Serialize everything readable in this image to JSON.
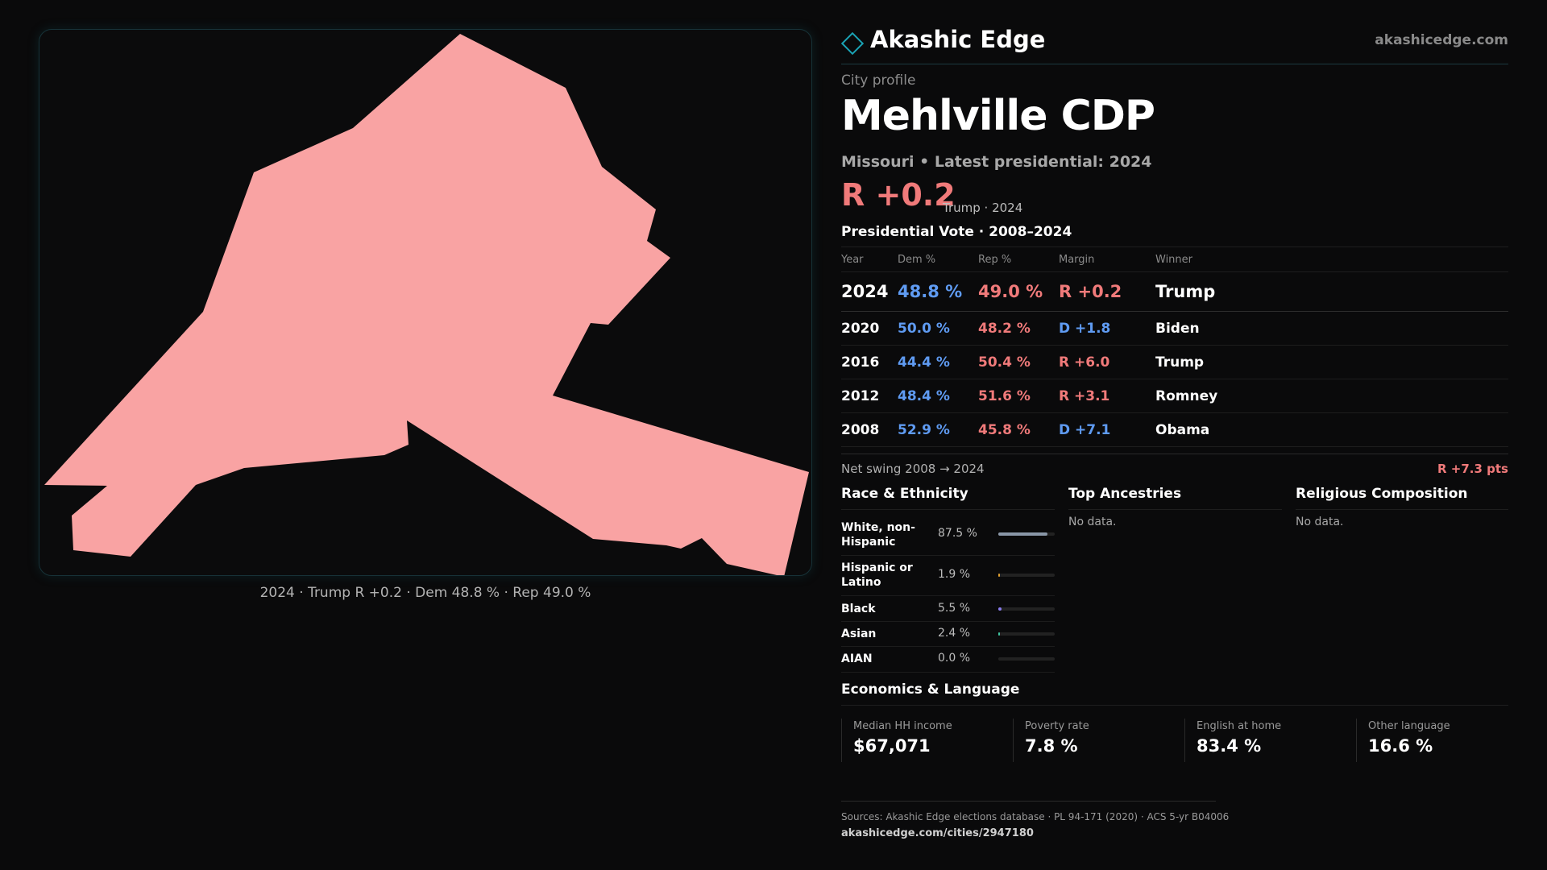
{
  "brand": {
    "name": "Akashic Edge",
    "url": "akashicedge.com"
  },
  "map": {
    "caption": "2024 · Trump R +0.2 · Dem 48.8 % · Rep 49.0 %",
    "fill_color": "#f9a3a3"
  },
  "profile": {
    "kicker": "City profile",
    "title": "Mehlville CDP",
    "subtitle": "Missouri • Latest presidential: 2024",
    "headline_margin": "R +0.2",
    "headline_winner": "Trump · 2024"
  },
  "vote": {
    "title": "Presidential Vote · 2008–2024",
    "headers": {
      "year": "Year",
      "dem": "Dem %",
      "rep": "Rep %",
      "margin": "Margin",
      "winner": "Winner"
    },
    "rows": [
      {
        "year": "2024",
        "dem": "48.8 %",
        "rep": "49.0 %",
        "margin": "R +0.2",
        "party": "R",
        "winner": "Trump"
      },
      {
        "year": "2020",
        "dem": "50.0 %",
        "rep": "48.2 %",
        "margin": "D +1.8",
        "party": "D",
        "winner": "Biden"
      },
      {
        "year": "2016",
        "dem": "44.4 %",
        "rep": "50.4 %",
        "margin": "R +6.0",
        "party": "R",
        "winner": "Trump"
      },
      {
        "year": "2012",
        "dem": "48.4 %",
        "rep": "51.6 %",
        "margin": "R +3.1",
        "party": "R",
        "winner": "Romney"
      },
      {
        "year": "2008",
        "dem": "52.9 %",
        "rep": "45.8 %",
        "margin": "D +7.1",
        "party": "D",
        "winner": "Obama"
      }
    ],
    "swing_label": "Net swing 2008 → 2024",
    "swing_value": "R +7.3 pts"
  },
  "race": {
    "title": "Race & Ethnicity",
    "rows": [
      {
        "label": "White, non-Hispanic",
        "value": "87.5 %",
        "share": 0.875,
        "color": "#8a97a8"
      },
      {
        "label": "Hispanic or Latino",
        "value": "1.9 %",
        "share": 0.019,
        "color": "#e0a030"
      },
      {
        "label": "Black",
        "value": "5.5 %",
        "share": 0.055,
        "color": "#8a7df0"
      },
      {
        "label": "Asian",
        "value": "2.4 %",
        "share": 0.024,
        "color": "#3fc4a0"
      },
      {
        "label": "AIAN",
        "value": "0.0 %",
        "share": 0.0,
        "color": "#c08040"
      }
    ]
  },
  "ancestry": {
    "title": "Top Ancestries",
    "empty": "No data."
  },
  "religion": {
    "title": "Religious Composition",
    "empty": "No data."
  },
  "economics": {
    "title": "Economics & Language",
    "cards": [
      {
        "label": "Median HH income",
        "value": "$67,071"
      },
      {
        "label": "Poverty rate",
        "value": "7.8 %"
      },
      {
        "label": "English at home",
        "value": "83.4 %"
      },
      {
        "label": "Other language",
        "value": "16.6 %"
      }
    ]
  },
  "sources": {
    "text": "Sources: Akashic Edge elections database · PL 94-171 (2020) · ACS 5-yr B04006",
    "url": "akashicedge.com/cities/2947180"
  }
}
